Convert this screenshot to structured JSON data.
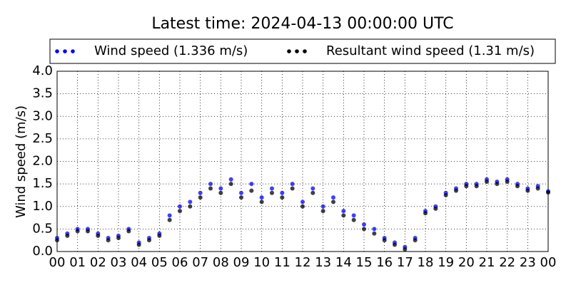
{
  "chart_data": {
    "type": "scatter",
    "title": "Latest time: 2024-04-13 00:00:00 UTC",
    "y_label": "Wind speed (m/s)",
    "x": [
      0,
      0.5,
      1,
      1.5,
      2,
      2.5,
      3,
      3.5,
      4,
      4.5,
      5,
      5.5,
      6,
      6.5,
      7,
      7.5,
      8,
      8.5,
      9,
      9.5,
      10,
      10.5,
      11,
      11.5,
      12,
      12.5,
      13,
      13.5,
      14,
      14.5,
      15,
      15.5,
      16,
      16.5,
      17,
      17.5,
      18,
      18.5,
      19,
      19.5,
      20,
      20.5,
      21,
      21.5,
      22,
      22.5,
      23,
      23.5,
      24
    ],
    "series": [
      {
        "name": "Wind speed (1.336 m/s)",
        "color": "#0000ff",
        "values": [
          0.3,
          0.4,
          0.5,
          0.5,
          0.4,
          0.3,
          0.35,
          0.5,
          0.2,
          0.3,
          0.4,
          0.8,
          1.0,
          1.1,
          1.3,
          1.5,
          1.4,
          1.6,
          1.3,
          1.5,
          1.2,
          1.4,
          1.3,
          1.5,
          1.1,
          1.4,
          1.0,
          1.2,
          0.9,
          0.8,
          0.6,
          0.5,
          0.3,
          0.2,
          0.1,
          0.3,
          0.9,
          1.0,
          1.3,
          1.4,
          1.5,
          1.5,
          1.6,
          1.55,
          1.6,
          1.5,
          1.4,
          1.45,
          1.336
        ]
      },
      {
        "name": "Resultant wind speed (1.31 m/s)",
        "color": "#000000",
        "values": [
          0.25,
          0.35,
          0.45,
          0.45,
          0.35,
          0.25,
          0.3,
          0.45,
          0.15,
          0.25,
          0.35,
          0.7,
          0.9,
          1.0,
          1.2,
          1.4,
          1.3,
          1.5,
          1.2,
          1.35,
          1.1,
          1.3,
          1.2,
          1.4,
          1.0,
          1.3,
          0.9,
          1.1,
          0.8,
          0.7,
          0.5,
          0.4,
          0.25,
          0.15,
          0.05,
          0.25,
          0.85,
          0.95,
          1.25,
          1.35,
          1.45,
          1.45,
          1.55,
          1.5,
          1.55,
          1.45,
          1.35,
          1.4,
          1.31
        ]
      }
    ],
    "xlim": [
      0,
      24
    ],
    "xticks": [
      {
        "value": 0,
        "label": "00"
      },
      {
        "value": 1,
        "label": "01"
      },
      {
        "value": 2,
        "label": "02"
      },
      {
        "value": 3,
        "label": "03"
      },
      {
        "value": 4,
        "label": "04"
      },
      {
        "value": 5,
        "label": "05"
      },
      {
        "value": 6,
        "label": "06"
      },
      {
        "value": 7,
        "label": "07"
      },
      {
        "value": 8,
        "label": "08"
      },
      {
        "value": 9,
        "label": "09"
      },
      {
        "value": 10,
        "label": "10"
      },
      {
        "value": 11,
        "label": "11"
      },
      {
        "value": 12,
        "label": "12"
      },
      {
        "value": 13,
        "label": "13"
      },
      {
        "value": 14,
        "label": "14"
      },
      {
        "value": 15,
        "label": "15"
      },
      {
        "value": 16,
        "label": "16"
      },
      {
        "value": 17,
        "label": "17"
      },
      {
        "value": 18,
        "label": "18"
      },
      {
        "value": 19,
        "label": "19"
      },
      {
        "value": 20,
        "label": "20"
      },
      {
        "value": 21,
        "label": "21"
      },
      {
        "value": 22,
        "label": "22"
      },
      {
        "value": 23,
        "label": "23"
      },
      {
        "value": 24,
        "label": "00"
      }
    ],
    "ylim": [
      0,
      4
    ],
    "yticks": [
      {
        "value": 0,
        "label": "0.0"
      },
      {
        "value": 0.5,
        "label": "0.5"
      },
      {
        "value": 1,
        "label": "1.0"
      },
      {
        "value": 1.5,
        "label": "1.5"
      },
      {
        "value": 2,
        "label": "2.0"
      },
      {
        "value": 2.5,
        "label": "2.5"
      },
      {
        "value": 3,
        "label": "3.0"
      },
      {
        "value": 3.5,
        "label": "3.5"
      },
      {
        "value": 4,
        "label": "4.0"
      }
    ],
    "grid": true,
    "legend": "top"
  }
}
